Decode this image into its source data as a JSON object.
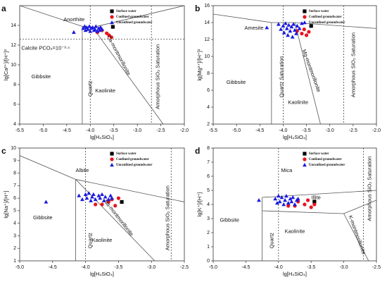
{
  "chart_data": [
    {
      "type": "scatter",
      "panel_label": "a",
      "xlabel": "lg[H₄SiO₄]",
      "ylabel": "lg[Ca²⁺]/[H⁺]²",
      "xlim": [
        -5.5,
        -2.0
      ],
      "ylim": [
        4,
        16
      ],
      "xticks": [
        -5.5,
        {
          "value": -5,
          "label": "-5.0"
        },
        -4.5,
        {
          "value": -4,
          "label": "-4.0"
        },
        -3.5,
        {
          "value": -3,
          "label": "-3.0"
        },
        -2.5,
        {
          "value": -2,
          "label": "-2.0"
        }
      ],
      "yticks": [
        4,
        6,
        8,
        10,
        12,
        14
      ],
      "boundaries": [
        [
          -5.5,
          16,
          -4.17,
          13.9
        ],
        [
          -4.17,
          13.9,
          -4.17,
          4
        ],
        [
          -4.17,
          13.9,
          -3.95,
          13.8
        ],
        [
          -3.95,
          13.8,
          -2.0,
          16
        ],
        [
          -3.95,
          13.8,
          -2.45,
          4
        ]
      ],
      "reference_lines": [
        {
          "x": -4.0
        },
        {
          "x": -2.7
        },
        {
          "y": 12.6
        }
      ],
      "region_labels": [
        "Anorthite",
        "Gibbsite",
        "Kaolinite",
        "Quartz",
        "Ca-montmorillonite",
        "Amorphous SiO₂ Saturation",
        "Calcite PCO₂=10⁻³·⁵"
      ],
      "series": [
        {
          "name": "Surface water",
          "color": "#000000",
          "marker": "square",
          "x": [
            -3.52
          ],
          "y": [
            13.85
          ]
        },
        {
          "name": "Confined groundwater",
          "color": "#e8141c",
          "marker": "circle",
          "x": [
            -3.85,
            -3.75,
            -3.65,
            -3.6,
            -3.55
          ],
          "y": [
            13.3,
            13.5,
            13.2,
            13.0,
            12.8
          ]
        },
        {
          "name": "Unconfined groundwater",
          "color": "#1a1ae0",
          "marker": "triangle",
          "x": [
            -4.35,
            -4.15,
            -4.12,
            -4.1,
            -4.08,
            -4.05,
            -4.02,
            -4.0,
            -3.98,
            -3.95,
            -3.92,
            -3.9,
            -3.88,
            -3.85,
            -3.82,
            -3.8,
            -3.78,
            -3.75
          ],
          "y": [
            13.3,
            13.7,
            13.9,
            13.5,
            13.8,
            13.6,
            13.9,
            13.4,
            13.7,
            13.8,
            13.5,
            13.6,
            13.9,
            13.4,
            13.7,
            13.5,
            13.8,
            13.6
          ]
        }
      ]
    },
    {
      "type": "scatter",
      "panel_label": "b",
      "xlabel": "lg[H₄SiO₄]",
      "ylabel": "lg[Mg²⁺]/[H⁺]²",
      "xlim": [
        -5.5,
        -2.0
      ],
      "ylim": [
        2,
        16
      ],
      "xticks": [
        -5.5,
        {
          "value": -5,
          "label": "-5.0"
        },
        -4.5,
        {
          "value": -4,
          "label": "-4.0"
        },
        -3.5,
        {
          "value": -3,
          "label": "-3.0"
        },
        -2.5,
        {
          "value": -2,
          "label": "-2.0"
        }
      ],
      "yticks": [
        2,
        4,
        6,
        8,
        10,
        12,
        14,
        16
      ],
      "boundaries": [
        [
          -5.5,
          15,
          -4.25,
          14
        ],
        [
          -4.25,
          14,
          -4.25,
          2
        ],
        [
          -4.25,
          14,
          -3.75,
          14
        ],
        [
          -3.75,
          14,
          -2.0,
          13.3
        ],
        [
          -3.75,
          14,
          -3.2,
          2
        ]
      ],
      "reference_lines": [
        {
          "x": -4.0
        },
        {
          "x": -2.7
        }
      ],
      "region_labels": [
        "Amesite",
        "Gibbsite",
        "Kaolinite",
        "Quartz Saturation",
        "Mg-montmorillonite",
        "Amorphous SiO₂ Saturation"
      ],
      "series": [
        {
          "name": "Surface water",
          "color": "#000000",
          "marker": "square",
          "x": [
            -3.4
          ],
          "y": [
            13.6
          ]
        },
        {
          "name": "Confined groundwater",
          "color": "#e8141c",
          "marker": "circle",
          "x": [
            -3.7,
            -3.6,
            -3.55,
            -3.5,
            -3.45
          ],
          "y": [
            13.0,
            12.7,
            13.2,
            12.5,
            12.9
          ]
        },
        {
          "name": "Unconfined groundwater",
          "color": "#1a1ae0",
          "marker": "triangle",
          "x": [
            -4.35,
            -4.1,
            -4.05,
            -4.0,
            -3.98,
            -3.95,
            -3.92,
            -3.9,
            -3.88,
            -3.85,
            -3.82,
            -3.8,
            -3.78,
            -3.75,
            -3.72,
            -3.7,
            -3.65,
            -3.6
          ],
          "y": [
            13.4,
            13.8,
            13.2,
            13.6,
            12.8,
            13.9,
            13.3,
            12.5,
            13.7,
            13.0,
            13.5,
            12.3,
            13.8,
            13.1,
            12.7,
            13.6,
            13.3,
            13.9
          ]
        }
      ]
    },
    {
      "type": "scatter",
      "panel_label": "c",
      "xlabel": "lg[H₄SiO₄]",
      "ylabel": "lg[Na⁺]/[H⁺]",
      "xlim": [
        -5.0,
        -2.5
      ],
      "ylim": [
        1,
        10
      ],
      "xticks": [
        {
          "value": -5,
          "label": "-5.0"
        },
        -4.5,
        {
          "value": -4,
          "label": "-4.0"
        },
        -3.5,
        {
          "value": -3,
          "label": "-3.0"
        },
        -2.5
      ],
      "yticks": [
        1,
        2,
        3,
        4,
        5,
        6,
        7,
        8,
        9,
        10
      ],
      "boundaries": [
        [
          -5.0,
          9.4,
          -4.15,
          7.5
        ],
        [
          -4.15,
          7.5,
          -4.15,
          1
        ],
        [
          -4.15,
          7.5,
          -2.5,
          5.7
        ],
        [
          -4.15,
          7.5,
          -2.95,
          1
        ]
      ],
      "reference_lines": [
        {
          "x": -4.0
        },
        {
          "x": -2.7
        }
      ],
      "region_labels": [
        "Albite",
        "Gibbsite",
        "Kaolinite",
        "Quartz",
        "Na-montmorillonite",
        "Amorphous SiO₂ Saturation"
      ],
      "series": [
        {
          "name": "Surface water",
          "color": "#000000",
          "marker": "square",
          "x": [
            -3.45
          ],
          "y": [
            5.7
          ]
        },
        {
          "name": "Confined groundwater",
          "color": "#e8141c",
          "marker": "circle",
          "x": [
            -3.85,
            -3.75,
            -3.65,
            -3.55,
            -3.5,
            -3.6
          ],
          "y": [
            5.5,
            5.5,
            5.7,
            5.4,
            6.0,
            5.9
          ]
        },
        {
          "name": "Unconfined groundwater",
          "color": "#1a1ae0",
          "marker": "triangle",
          "x": [
            -4.6,
            -4.1,
            -4.05,
            -4.0,
            -3.98,
            -3.95,
            -3.92,
            -3.9,
            -3.88,
            -3.85,
            -3.8,
            -3.78,
            -3.75,
            -3.72,
            -3.7,
            -3.65,
            -3.62,
            -3.6
          ],
          "y": [
            5.7,
            6.2,
            5.9,
            6.3,
            6.0,
            6.4,
            5.8,
            6.1,
            6.3,
            5.9,
            6.2,
            6.0,
            6.3,
            5.8,
            6.1,
            5.9,
            6.2,
            6.0
          ]
        }
      ]
    },
    {
      "type": "scatter",
      "panel_label": "d",
      "xlabel": "lg[H₄SiO₄]",
      "ylabel": "lg[K⁺]/[H⁺]",
      "xlim": [
        -5.0,
        -2.5
      ],
      "ylim": [
        0,
        8
      ],
      "xticks": [
        {
          "value": -5,
          "label": "-5.0"
        },
        -4.5,
        {
          "value": -4,
          "label": "-4.0"
        },
        -3.5,
        {
          "value": -3,
          "label": "-3.0"
        },
        -2.5
      ],
      "yticks": [
        0,
        1,
        2,
        3,
        4,
        5,
        6,
        7,
        8
      ],
      "boundaries": [
        [
          -4.25,
          4.5,
          -2.5,
          5.0
        ],
        [
          -4.25,
          4.5,
          -4.25,
          0
        ],
        [
          -4.25,
          3.55,
          -3.0,
          3.35
        ],
        [
          -3.0,
          3.35,
          -2.5,
          4.3
        ],
        [
          -3.0,
          3.35,
          -2.62,
          0
        ]
      ],
      "reference_lines": [
        {
          "x": -4.0
        },
        {
          "x": -2.7
        }
      ],
      "region_labels": [
        "Mica",
        "Gibbsite",
        "Illite",
        "Kaolinite",
        "Quartz",
        "K-montmorillonite",
        "Amorphous SiO₂ Saturation"
      ],
      "series": [
        {
          "name": "Surface water",
          "color": "#000000",
          "marker": "square",
          "x": [
            -3.45
          ],
          "y": [
            4.2
          ]
        },
        {
          "name": "Confined groundwater",
          "color": "#e8141c",
          "marker": "circle",
          "x": [
            -3.85,
            -3.75,
            -3.7,
            -3.6,
            -3.55,
            -3.5,
            -3.45
          ],
          "y": [
            3.9,
            3.9,
            4.2,
            4.0,
            4.3,
            3.8,
            4.0
          ]
        },
        {
          "name": "Unconfined groundwater",
          "color": "#1a1ae0",
          "marker": "triangle",
          "x": [
            -4.3,
            -4.05,
            -4.02,
            -4.0,
            -3.98,
            -3.95,
            -3.92,
            -3.9,
            -3.88,
            -3.85,
            -3.82,
            -3.8,
            -3.78,
            -3.75,
            -3.72,
            -3.7
          ],
          "y": [
            4.3,
            4.4,
            4.1,
            4.6,
            4.2,
            4.5,
            4.0,
            4.3,
            4.6,
            4.1,
            4.4,
            4.2,
            4.5,
            4.0,
            4.3,
            4.4
          ]
        }
      ]
    }
  ]
}
